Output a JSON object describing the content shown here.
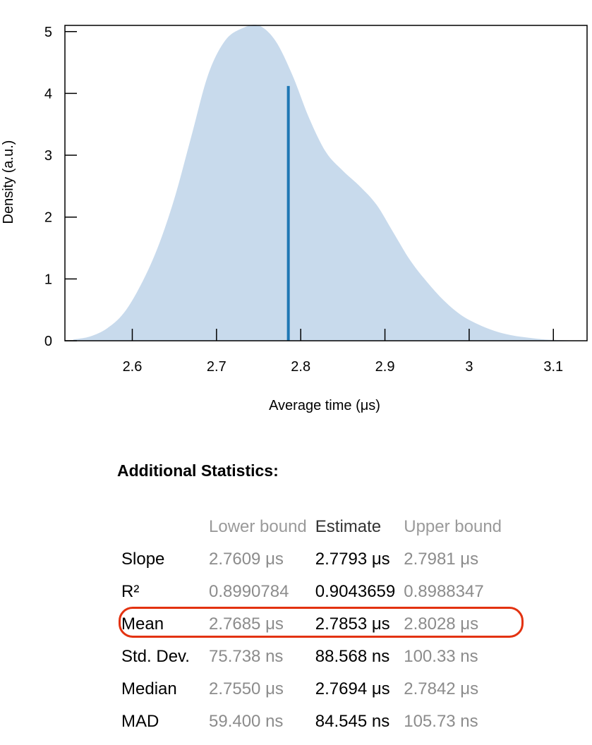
{
  "chart_data": {
    "type": "area",
    "xlabel": "Average time (μs)",
    "ylabel": "Density (a.u.)",
    "xlim": [
      2.52,
      3.14
    ],
    "ylim": [
      0,
      5.1
    ],
    "x_ticks": [
      2.6,
      2.7,
      2.8,
      2.9,
      3.0,
      3.1
    ],
    "x_tick_labels": [
      "2.6",
      "2.7",
      "2.8",
      "2.9",
      "3",
      "3.1"
    ],
    "y_ticks": [
      0,
      1,
      2,
      3,
      4,
      5
    ],
    "y_tick_labels": [
      "0",
      "1",
      "2",
      "3",
      "4",
      "5"
    ],
    "grid": false,
    "series": [
      {
        "x": [
          2.53,
          2.55,
          2.57,
          2.59,
          2.61,
          2.63,
          2.65,
          2.67,
          2.69,
          2.71,
          2.73,
          2.75,
          2.77,
          2.79,
          2.81,
          2.83,
          2.85,
          2.87,
          2.89,
          2.91,
          2.93,
          2.95,
          2.97,
          2.99,
          3.01,
          3.03,
          3.05,
          3.07,
          3.09,
          3.11,
          3.13
        ],
        "y": [
          0.02,
          0.07,
          0.2,
          0.45,
          0.9,
          1.5,
          2.3,
          3.3,
          4.3,
          4.85,
          5.05,
          5.1,
          4.85,
          4.3,
          3.6,
          3.05,
          2.75,
          2.5,
          2.2,
          1.75,
          1.3,
          0.95,
          0.65,
          0.42,
          0.27,
          0.16,
          0.09,
          0.05,
          0.02,
          0.01,
          0.0
        ],
        "color": "#c8daec"
      }
    ],
    "markers": [
      {
        "x": 2.7853,
        "y": 4.12,
        "color": "#1f77b4"
      }
    ]
  },
  "stats": {
    "title": "Additional Statistics:",
    "headers": [
      "",
      "Lower bound",
      "Estimate",
      "Upper bound"
    ],
    "rows": [
      {
        "label": "Slope",
        "lower": "2.7609 μs",
        "estimate": "2.7793 μs",
        "upper": "2.7981 μs"
      },
      {
        "label": "R²",
        "lower": "0.8990784",
        "estimate": "0.9043659",
        "upper": "0.8988347"
      },
      {
        "label": "Mean",
        "lower": "2.7685 μs",
        "estimate": "2.7853 μs",
        "upper": "2.8028 μs"
      },
      {
        "label": "Std. Dev.",
        "lower": "75.738 ns",
        "estimate": "88.568 ns",
        "upper": "100.33 ns"
      },
      {
        "label": "Median",
        "lower": "2.7550 μs",
        "estimate": "2.7694 μs",
        "upper": "2.7842 μs"
      },
      {
        "label": "MAD",
        "lower": "59.400 ns",
        "estimate": "84.545 ns",
        "upper": "105.73 ns"
      }
    ],
    "highlight_color": "#e33210"
  }
}
